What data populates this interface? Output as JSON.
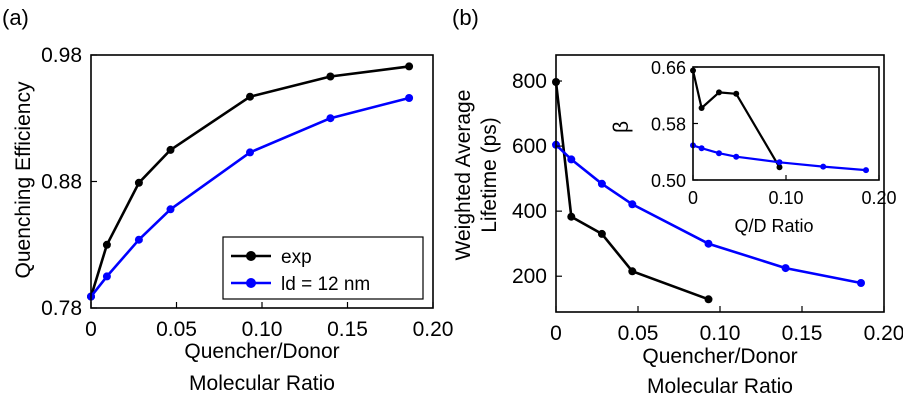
{
  "figure": {
    "panel_a_label": "(a)",
    "panel_b_label": "(b)"
  },
  "chart_data": [
    {
      "type": "line",
      "panel": "(a)",
      "title": "",
      "xlabel": [
        "Quencher/Donor",
        "Molecular Ratio"
      ],
      "ylabel": "Quenching Efficiency",
      "xlim": [
        0,
        0.2
      ],
      "ylim": [
        0.78,
        0.98
      ],
      "xticks": [
        0,
        0.05,
        0.1,
        0.15,
        0.2
      ],
      "xtick_labels": [
        "0",
        "0.05",
        "0.10",
        "0.15",
        "0.20"
      ],
      "yticks": [
        0.78,
        0.88,
        0.98
      ],
      "ytick_labels": [
        "0.78",
        "0.88",
        "0.98"
      ],
      "legend_position": "bottom-right",
      "series": [
        {
          "name": "exp",
          "color": "#000000",
          "x": [
            0,
            0.0093,
            0.028,
            0.0465,
            0.093,
            0.14,
            0.186
          ],
          "y": [
            0.789,
            0.83,
            0.879,
            0.905,
            0.947,
            0.963,
            0.971
          ]
        },
        {
          "name": "ld = 12 nm",
          "color": "#0000ff",
          "x": [
            0,
            0.0093,
            0.028,
            0.0465,
            0.093,
            0.14,
            0.186
          ],
          "y": [
            0.789,
            0.805,
            0.834,
            0.858,
            0.903,
            0.93,
            0.946
          ]
        }
      ]
    },
    {
      "type": "line",
      "panel": "(b)",
      "title": "",
      "xlabel": [
        "Quencher/Donor",
        "Molecular Ratio"
      ],
      "ylabel": [
        "Weighted Average",
        "Lifetime (ps)"
      ],
      "xlim": [
        0,
        0.2
      ],
      "ylim": [
        90,
        880
      ],
      "xticks": [
        0,
        0.05,
        0.1,
        0.15,
        0.2
      ],
      "xtick_labels": [
        "0",
        "0.05",
        "0.10",
        "0.15",
        "0.20"
      ],
      "yticks": [
        200,
        400,
        600,
        800
      ],
      "ytick_labels": [
        "200",
        "400",
        "600",
        "800"
      ],
      "series": [
        {
          "color": "#000000",
          "x": [
            0,
            0.0093,
            0.028,
            0.0465,
            0.093
          ],
          "y": [
            797,
            383,
            330,
            215,
            129
          ]
        },
        {
          "color": "#0000ff",
          "x": [
            0,
            0.0093,
            0.028,
            0.0465,
            0.093,
            0.14,
            0.186
          ],
          "y": [
            604,
            559,
            484,
            421,
            300,
            225,
            179
          ]
        }
      ]
    },
    {
      "type": "line",
      "panel": "(b) inset",
      "title": "",
      "xlabel": "Q/D Ratio",
      "ylabel": "β",
      "xlim": [
        0,
        0.2
      ],
      "ylim": [
        0.5,
        0.66
      ],
      "xticks": [
        0,
        0.1,
        0.2
      ],
      "xtick_labels": [
        "0",
        "0.10",
        "0.20"
      ],
      "yticks": [
        0.5,
        0.58,
        0.66
      ],
      "ytick_labels": [
        "0.50",
        "0.58",
        "0.66"
      ],
      "series": [
        {
          "color": "#000000",
          "x": [
            0,
            0.0093,
            0.028,
            0.0465,
            0.093
          ],
          "y": [
            0.655,
            0.602,
            0.624,
            0.622,
            0.518
          ]
        },
        {
          "color": "#0000ff",
          "x": [
            0,
            0.0093,
            0.028,
            0.0465,
            0.093,
            0.14,
            0.186
          ],
          "y": [
            0.549,
            0.545,
            0.538,
            0.533,
            0.525,
            0.519,
            0.514
          ]
        }
      ]
    }
  ]
}
